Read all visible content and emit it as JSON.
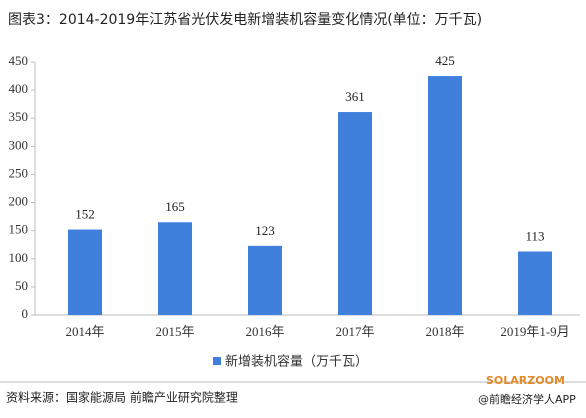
{
  "chart_data": {
    "type": "bar",
    "title": "图表3：2014-2019年江苏省光伏发电新增装机容量变化情况(单位：万千瓦)",
    "categories": [
      "2014年",
      "2015年",
      "2016年",
      "2017年",
      "2018年",
      "2019年1-9月"
    ],
    "series": [
      {
        "name": "新增装机容量（万千瓦）",
        "color": "#3f80dc",
        "values": [
          152,
          165,
          123,
          361,
          425,
          113
        ]
      }
    ],
    "ylim": [
      0,
      450
    ],
    "yticks": [
      0,
      50,
      100,
      150,
      200,
      250,
      300,
      350,
      400,
      450
    ],
    "grid": false,
    "legend": "bottom",
    "source": "资料来源：国家能源局 前瞻产业研究院整理",
    "brand": "SOLARZOOM",
    "footer": "@前瞻经济学人APP"
  }
}
